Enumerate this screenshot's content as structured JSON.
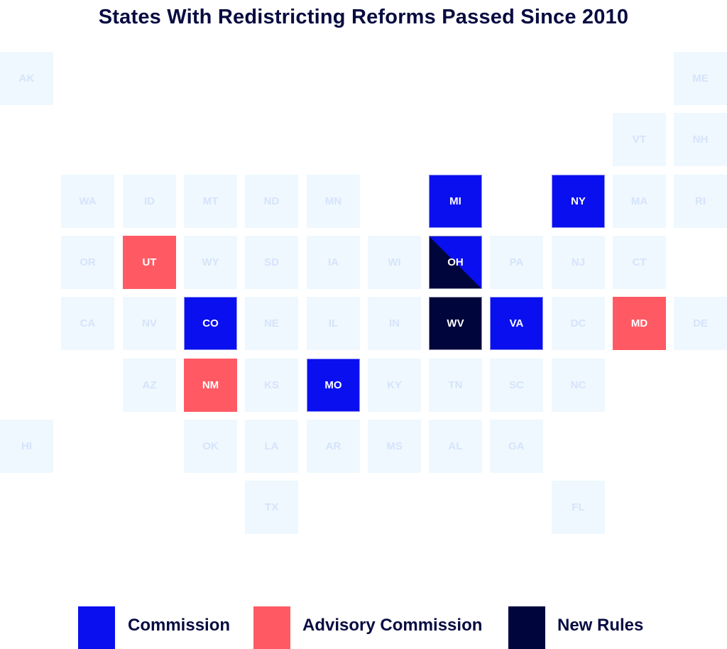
{
  "title": "States With Redistricting Reforms Passed Since 2010",
  "colors": {
    "commission": "#0a0fef",
    "advisory": "#ff5a64",
    "newrules": "#00063b",
    "none": "#eef8fe"
  },
  "legend": [
    {
      "key": "commission",
      "label": "Commission"
    },
    {
      "key": "advisory",
      "label": "Advisory Commission"
    },
    {
      "key": "newrules",
      "label": "New Rules"
    }
  ],
  "states": [
    {
      "abbr": "AK",
      "row": 0,
      "col": 0,
      "status": "none"
    },
    {
      "abbr": "ME",
      "row": 0,
      "col": 11,
      "status": "none"
    },
    {
      "abbr": "VT",
      "row": 1,
      "col": 10,
      "status": "none"
    },
    {
      "abbr": "NH",
      "row": 1,
      "col": 11,
      "status": "none"
    },
    {
      "abbr": "WA",
      "row": 2,
      "col": 1,
      "status": "none"
    },
    {
      "abbr": "ID",
      "row": 2,
      "col": 2,
      "status": "none"
    },
    {
      "abbr": "MT",
      "row": 2,
      "col": 3,
      "status": "none"
    },
    {
      "abbr": "ND",
      "row": 2,
      "col": 4,
      "status": "none"
    },
    {
      "abbr": "MN",
      "row": 2,
      "col": 5,
      "status": "none"
    },
    {
      "abbr": "MI",
      "row": 2,
      "col": 7,
      "status": "commission"
    },
    {
      "abbr": "NY",
      "row": 2,
      "col": 9,
      "status": "commission"
    },
    {
      "abbr": "MA",
      "row": 2,
      "col": 10,
      "status": "none"
    },
    {
      "abbr": "RI",
      "row": 2,
      "col": 11,
      "status": "none"
    },
    {
      "abbr": "OR",
      "row": 3,
      "col": 1,
      "status": "none"
    },
    {
      "abbr": "UT",
      "row": 3,
      "col": 2,
      "status": "advisory"
    },
    {
      "abbr": "WY",
      "row": 3,
      "col": 3,
      "status": "none"
    },
    {
      "abbr": "SD",
      "row": 3,
      "col": 4,
      "status": "none"
    },
    {
      "abbr": "IA",
      "row": 3,
      "col": 5,
      "status": "none"
    },
    {
      "abbr": "WI",
      "row": 3,
      "col": 6,
      "status": "none"
    },
    {
      "abbr": "OH",
      "row": 3,
      "col": 7,
      "status": "split"
    },
    {
      "abbr": "PA",
      "row": 3,
      "col": 8,
      "status": "none"
    },
    {
      "abbr": "NJ",
      "row": 3,
      "col": 9,
      "status": "none"
    },
    {
      "abbr": "CT",
      "row": 3,
      "col": 10,
      "status": "none"
    },
    {
      "abbr": "CA",
      "row": 4,
      "col": 1,
      "status": "none"
    },
    {
      "abbr": "NV",
      "row": 4,
      "col": 2,
      "status": "none"
    },
    {
      "abbr": "CO",
      "row": 4,
      "col": 3,
      "status": "commission"
    },
    {
      "abbr": "NE",
      "row": 4,
      "col": 4,
      "status": "none"
    },
    {
      "abbr": "IL",
      "row": 4,
      "col": 5,
      "status": "none"
    },
    {
      "abbr": "IN",
      "row": 4,
      "col": 6,
      "status": "none"
    },
    {
      "abbr": "WV",
      "row": 4,
      "col": 7,
      "status": "newrules"
    },
    {
      "abbr": "VA",
      "row": 4,
      "col": 8,
      "status": "commission"
    },
    {
      "abbr": "DC",
      "row": 4,
      "col": 9,
      "status": "none"
    },
    {
      "abbr": "MD",
      "row": 4,
      "col": 10,
      "status": "advisory"
    },
    {
      "abbr": "DE",
      "row": 4,
      "col": 11,
      "status": "none"
    },
    {
      "abbr": "AZ",
      "row": 5,
      "col": 2,
      "status": "none"
    },
    {
      "abbr": "NM",
      "row": 5,
      "col": 3,
      "status": "advisory"
    },
    {
      "abbr": "KS",
      "row": 5,
      "col": 4,
      "status": "none"
    },
    {
      "abbr": "MO",
      "row": 5,
      "col": 5,
      "status": "commission"
    },
    {
      "abbr": "KY",
      "row": 5,
      "col": 6,
      "status": "none"
    },
    {
      "abbr": "TN",
      "row": 5,
      "col": 7,
      "status": "none"
    },
    {
      "abbr": "SC",
      "row": 5,
      "col": 8,
      "status": "none"
    },
    {
      "abbr": "NC",
      "row": 5,
      "col": 9,
      "status": "none"
    },
    {
      "abbr": "HI",
      "row": 6,
      "col": 0,
      "status": "none"
    },
    {
      "abbr": "OK",
      "row": 6,
      "col": 3,
      "status": "none"
    },
    {
      "abbr": "LA",
      "row": 6,
      "col": 4,
      "status": "none"
    },
    {
      "abbr": "AR",
      "row": 6,
      "col": 5,
      "status": "none"
    },
    {
      "abbr": "MS",
      "row": 6,
      "col": 6,
      "status": "none"
    },
    {
      "abbr": "AL",
      "row": 6,
      "col": 7,
      "status": "none"
    },
    {
      "abbr": "GA",
      "row": 6,
      "col": 8,
      "status": "none"
    },
    {
      "abbr": "TX",
      "row": 7,
      "col": 4,
      "status": "none"
    },
    {
      "abbr": "FL",
      "row": 7,
      "col": 9,
      "status": "none"
    }
  ]
}
